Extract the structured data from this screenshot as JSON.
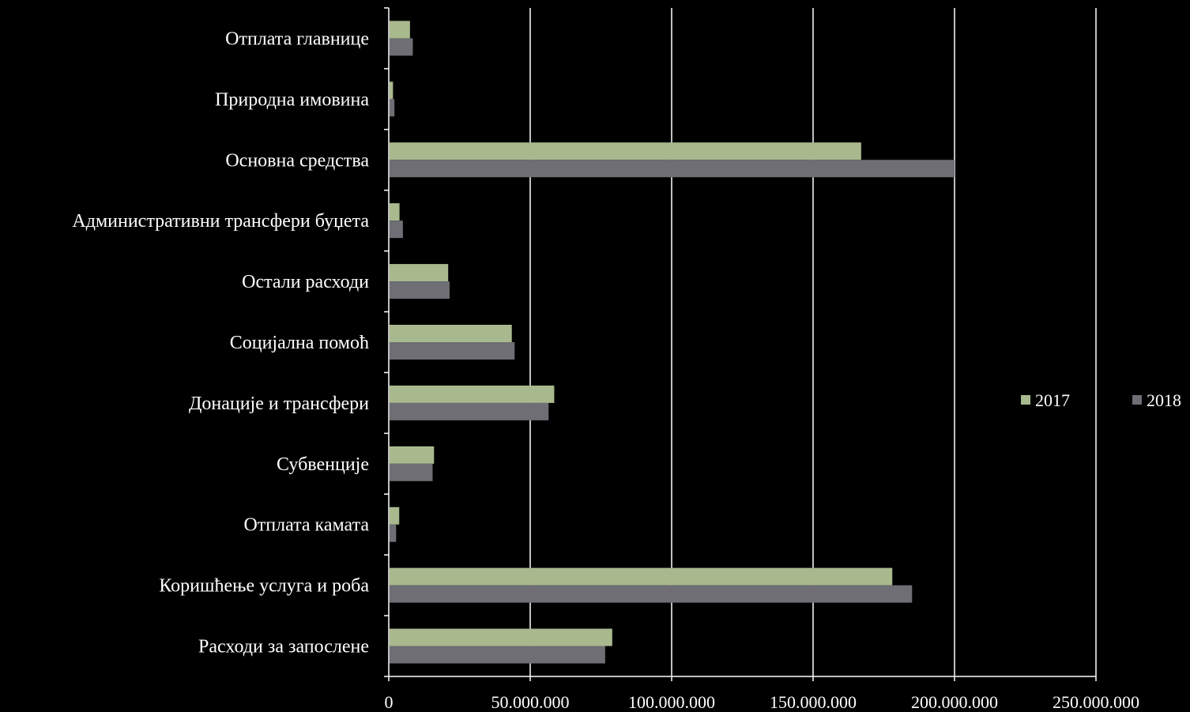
{
  "chart_data": {
    "type": "bar",
    "orientation": "horizontal",
    "categories": [
      "Отплата главнице",
      "Природна имовина",
      "Основна средства",
      "Административни трансфери буџета",
      "Остали расходи",
      "Социјална помоћ",
      "Донације и трансфери",
      "Субвенције",
      "Отплата камата",
      "Коришћење услуга и роба",
      "Расходи за запослене"
    ],
    "series": [
      {
        "name": "2017",
        "color": "#a9b98e",
        "values": [
          7500000,
          1500000,
          167000000,
          3800000,
          21000000,
          43500000,
          58500000,
          16000000,
          3700000,
          178000000,
          79000000
        ]
      },
      {
        "name": "2018",
        "color": "#6e6e74",
        "values": [
          8500000,
          2000000,
          200000000,
          5000000,
          21500000,
          44500000,
          56500000,
          15500000,
          2600000,
          185000000,
          76500000
        ]
      }
    ],
    "xlim": [
      0,
      250000000
    ],
    "xticks": [
      "0",
      "50.000.000",
      "100.000.000",
      "150.000.000",
      "200.000.000",
      "250.000.000"
    ],
    "title": "",
    "xlabel": "",
    "ylabel": "",
    "grid": "vertical",
    "legend_position": "right"
  },
  "colors": {
    "background": "#000000",
    "gridline": "#ffffff",
    "axis": "#ffffff",
    "text": "#ffffff"
  }
}
